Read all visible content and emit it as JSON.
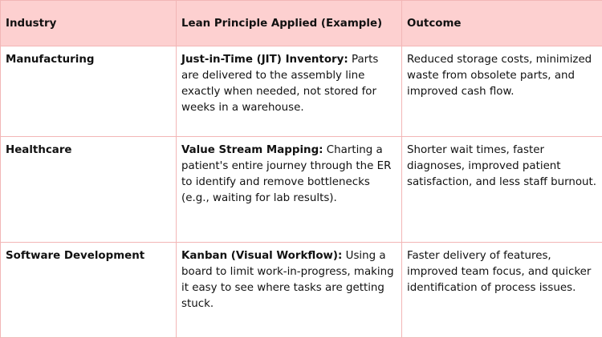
{
  "table": {
    "header": [
      "Industry",
      "Lean Principle Applied (Example)",
      "Outcome"
    ],
    "rows": [
      {
        "industry": "Manufacturing",
        "principle_term": "Just-in-Time (JIT) Inventory:",
        "principle_text": "Parts are delivered to the assembly line exactly when needed, not stored for weeks in a warehouse.",
        "outcome": "Reduced storage costs, minimized waste from obsolete parts, and improved cash flow."
      },
      {
        "industry": "Healthcare",
        "principle_term": "Value Stream Mapping:",
        "principle_text": "Charting a patient's entire journey through the ER to identify and remove bottlenecks (e.g., waiting for lab results).",
        "outcome": "Shorter wait times, faster diagnoses, improved patient satisfaction, and less staff burnout."
      },
      {
        "industry": "Software Development",
        "principle_term": "Kanban (Visual Workflow):",
        "principle_text": "Using a board to limit work-in-progress, making it easy to see where tasks are getting stuck.",
        "outcome": "Faster delivery of features, improved team focus, and quicker identification of process issues."
      }
    ]
  }
}
